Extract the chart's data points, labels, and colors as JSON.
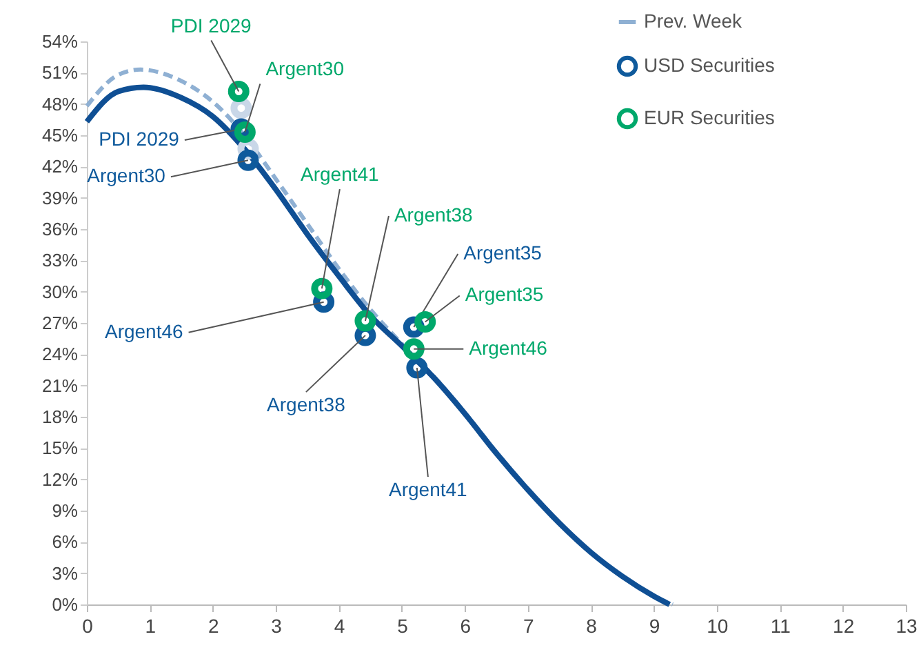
{
  "chart_data": {
    "type": "line",
    "xlim": [
      0,
      13
    ],
    "xticks": [
      0,
      1,
      2,
      3,
      4,
      5,
      6,
      7,
      8,
      9,
      10,
      11,
      12,
      13
    ],
    "ylim": [
      0,
      54
    ],
    "yticks": [
      {
        "value": 0,
        "label": "0%"
      },
      {
        "value": 3,
        "label": "3%"
      },
      {
        "value": 6,
        "label": "6%"
      },
      {
        "value": 9,
        "label": "9%"
      },
      {
        "value": 12,
        "label": "12%"
      },
      {
        "value": 15,
        "label": "15%"
      },
      {
        "value": 18,
        "label": "18%"
      },
      {
        "value": 21,
        "label": "21%"
      },
      {
        "value": 24,
        "label": "24%"
      },
      {
        "value": 27,
        "label": "27%"
      },
      {
        "value": 30,
        "label": "30%"
      },
      {
        "value": 33,
        "label": "33%"
      },
      {
        "value": 36,
        "label": "36%"
      },
      {
        "value": 39,
        "label": "39%"
      },
      {
        "value": 42,
        "label": "42%"
      },
      {
        "value": 45,
        "label": "45%"
      },
      {
        "value": 48,
        "label": "48%"
      },
      {
        "value": 51,
        "label": "51%"
      },
      {
        "value": 54,
        "label": "54%"
      }
    ],
    "grid": false,
    "legend": "top right",
    "series": [
      {
        "name": "Prev. Week",
        "line_style": "dashed",
        "color": "#8fb0d3",
        "x": [
          0,
          0.5,
          0.85,
          1.5,
          2,
          2.5,
          3,
          3.5,
          4,
          4.5,
          5,
          5.5,
          6,
          6.5,
          7,
          7.5,
          8,
          8.5,
          9,
          9.3
        ],
        "values": [
          47.8,
          50.8,
          51.3,
          50.2,
          48.2,
          45,
          40.8,
          36.5,
          32.2,
          28.3,
          25,
          21.9,
          18.4,
          14.6,
          11,
          7.8,
          5,
          2.7,
          0.8,
          0
        ]
      },
      {
        "line_style": "solid",
        "color": "#0f4f94",
        "x": [
          0,
          0.5,
          0.9,
          1.5,
          2,
          2.5,
          3,
          3.5,
          4,
          4.5,
          5,
          5.5,
          6,
          6.5,
          7,
          7.5,
          8,
          8.5,
          9,
          9.25
        ],
        "values": [
          46.3,
          49.2,
          49.6,
          48.6,
          46.8,
          43.7,
          39.8,
          35.5,
          31.5,
          27.7,
          24.8,
          21.8,
          18.3,
          14.5,
          11,
          7.8,
          5,
          2.7,
          0.8,
          0
        ]
      },
      {
        "type": "scatter",
        "color": "#c9d7e8",
        "x": [
          2.45,
          2.56
        ],
        "values": [
          47.6,
          43.7
        ]
      },
      {
        "name": "USD Securities",
        "type": "scatter",
        "color": "#0f5a9c",
        "x": [
          2.45,
          2.56,
          3.76,
          4.42,
          5.19,
          5.24
        ],
        "values": [
          45.6,
          42.6,
          29,
          25.8,
          26.6,
          22.7
        ],
        "value_labels": [
          "PDI 2029",
          "Argent30",
          "Argent46",
          "Argent38",
          "Argent35",
          "Argent41"
        ]
      },
      {
        "name": "EUR Securities",
        "type": "scatter",
        "color": "#00a86b",
        "x": [
          2.41,
          2.51,
          3.73,
          4.42,
          5.37,
          5.19
        ],
        "values": [
          49.2,
          45.3,
          30.3,
          27.2,
          27.1,
          24.5
        ],
        "value_labels": [
          "PDI 2029",
          "Argent30",
          "Argent41",
          "Argent38",
          "Argent35",
          "Argent46"
        ]
      }
    ]
  }
}
